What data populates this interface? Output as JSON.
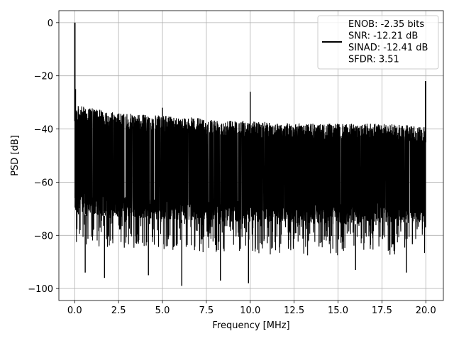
{
  "chart_data": {
    "type": "line",
    "xlabel": "Frequency [MHz]",
    "ylabel": "PSD [dB]",
    "xlim": [
      -0.9,
      21.0
    ],
    "ylim": [
      -104.5,
      4.5
    ],
    "xticks": [
      0.0,
      2.5,
      5.0,
      7.5,
      10.0,
      12.5,
      15.0,
      17.5,
      20.0
    ],
    "xtick_labels": [
      "0.0",
      "2.5",
      "5.0",
      "7.5",
      "10.0",
      "12.5",
      "15.0",
      "17.5",
      "20.0"
    ],
    "yticks": [
      0,
      -20,
      -40,
      -60,
      -80,
      -100
    ],
    "ytick_labels": [
      "0",
      "−20",
      "−40",
      "−60",
      "−80",
      "−100"
    ],
    "grid": true,
    "legend_position": "top-right",
    "series": [
      {
        "name": "ENOB: -2.35 bits\nSNR: -12.21 dB\nSINAD: -12.41 dB\nSFDR: 3.51",
        "color": "#000000",
        "noise_floor_upper": [
          [
            0.0,
            -31
          ],
          [
            2.5,
            -34
          ],
          [
            5.0,
            -35
          ],
          [
            7.5,
            -36
          ],
          [
            10.0,
            -37
          ],
          [
            12.5,
            -38
          ],
          [
            15.0,
            -38
          ],
          [
            17.5,
            -38
          ],
          [
            20.0,
            -39
          ]
        ],
        "noise_floor_dense_lower": [
          [
            0.0,
            -72
          ],
          [
            5.0,
            -74
          ],
          [
            10.0,
            -75
          ],
          [
            15.0,
            -76
          ],
          [
            20.0,
            -75
          ]
        ],
        "spikes": [
          {
            "x": 0.0,
            "y": 0
          },
          {
            "x": 0.05,
            "y": -25
          },
          {
            "x": 10.0,
            "y": -26
          },
          {
            "x": 20.0,
            "y": -22
          },
          {
            "x": 5.0,
            "y": -32
          },
          {
            "x": 6.1,
            "y": -99
          },
          {
            "x": 8.3,
            "y": -97
          },
          {
            "x": 9.9,
            "y": -98
          },
          {
            "x": 4.2,
            "y": -95
          },
          {
            "x": 0.6,
            "y": -94
          },
          {
            "x": 1.7,
            "y": -96
          },
          {
            "x": 18.9,
            "y": -94
          },
          {
            "x": 16.0,
            "y": -93
          }
        ]
      }
    ]
  }
}
